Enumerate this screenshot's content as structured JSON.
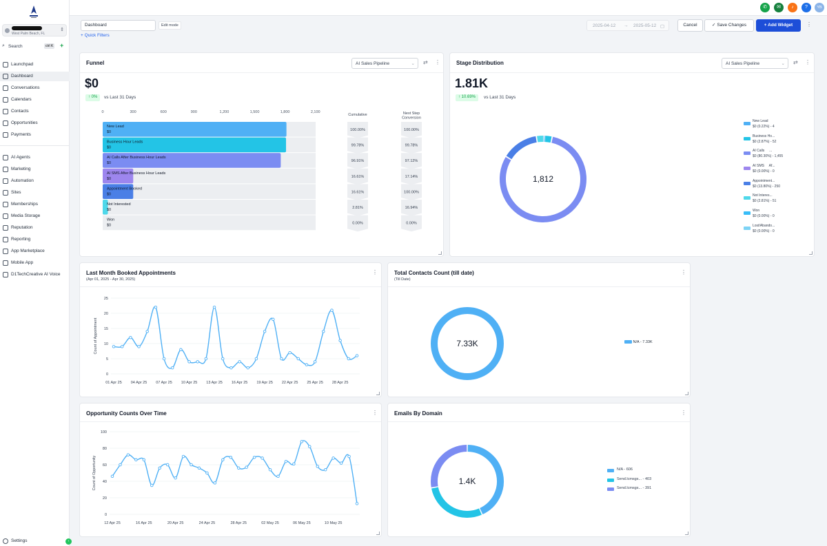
{
  "sidebar": {
    "account_location": "West Palm Beach, FL",
    "search_label": "Search",
    "search_shortcut": "ctrl K",
    "items": [
      {
        "label": "Launchpad"
      },
      {
        "label": "Dashboard"
      },
      {
        "label": "Conversations"
      },
      {
        "label": "Calendars"
      },
      {
        "label": "Contacts"
      },
      {
        "label": "Opportunities"
      },
      {
        "label": "Payments"
      },
      {
        "label": "AI Agents"
      },
      {
        "label": "Marketing"
      },
      {
        "label": "Automation"
      },
      {
        "label": "Sites"
      },
      {
        "label": "Memberships"
      },
      {
        "label": "Media Storage"
      },
      {
        "label": "Reputation"
      },
      {
        "label": "Reporting"
      },
      {
        "label": "App Marketplace"
      },
      {
        "label": "Mobile App"
      },
      {
        "label": "D1TechCreative AI Voice"
      }
    ],
    "settings_label": "Settings"
  },
  "topbar": {
    "help": "?",
    "avatar": "YB",
    "colors": {
      "phone": "#16a34a",
      "megaphone": "#15803d",
      "bell": "#f97316",
      "help": "#1d6fe8",
      "avatar": "#8bb4e8"
    }
  },
  "toolbar": {
    "dashboard_name": "Dashboard",
    "edit_mode": "Edit mode",
    "quick_filters": "+ Quick Filters",
    "date_start": "2025-04-12",
    "date_end": "2025-05-12",
    "cancel": "Cancel",
    "save": "Save Changes",
    "add_widget": "+ Add Widget"
  },
  "funnel": {
    "title": "Funnel",
    "pipeline": "AI Sales Pipeline",
    "value": "$0",
    "change": "↑ 0%",
    "vs": "vs Last 31 Days",
    "ticks": [
      "0",
      "300",
      "600",
      "900",
      "1,200",
      "1,500",
      "1,800",
      "2,100"
    ],
    "col_cumulative": "Cumulative",
    "col_next_1": "Next Step",
    "col_next_2": "Conversion",
    "stages": [
      {
        "name": "New Lead",
        "value": "$0",
        "count": 1812,
        "color": "#4fb0f5",
        "cumulative": "100.00%",
        "next": "100.00%"
      },
      {
        "name": "Business Hour Leads",
        "value": "$0",
        "count": 1808,
        "color": "#23c4e6",
        "cumulative": "99.78%",
        "next": "99.78%"
      },
      {
        "name": "AI Calls   After Business Hour Leads",
        "value": "$0",
        "count": 1756,
        "color": "#7b8cf2",
        "cumulative": "96.91%",
        "next": "97.12%"
      },
      {
        "name": "AI SMS   After Business Hour Leads",
        "value": "$0",
        "count": 301,
        "color": "#9d86ee",
        "cumulative": "16.61%",
        "next": "17.14%"
      },
      {
        "name": "Appointment Booked",
        "value": "$0",
        "count": 301,
        "color": "#4a7fe6",
        "cumulative": "16.61%",
        "next": "100.00%"
      },
      {
        "name": "Not Interested",
        "value": "$0",
        "count": 51,
        "color": "#4fd8ea",
        "cumulative": "2.81%",
        "next": "16.94%"
      },
      {
        "name": "Won",
        "value": "$0",
        "count": 0,
        "color": "#38bdf8",
        "cumulative": "0.00%",
        "next": "0.00%"
      }
    ]
  },
  "stage_distribution": {
    "title": "Stage Distribution",
    "pipeline": "AI Sales Pipeline",
    "value": "1.81K",
    "change": "↑ 10.69%",
    "vs": "vs Last 31 Days",
    "center": "1,812",
    "legend": [
      {
        "name": "New Lead",
        "detail": "$0 (0.22%) - 4",
        "value": 4,
        "color": "#4fb0f5"
      },
      {
        "name": "Business Ho...",
        "detail": "$0 (2.87%) - 52",
        "value": 52,
        "color": "#23c4e6"
      },
      {
        "name": "AI Calls     ...",
        "detail": "$0 (80.30%) - 1,455",
        "value": 1455,
        "color": "#7b8cf2"
      },
      {
        "name": "AI SMS     Af...",
        "detail": "$0 (0.00%) - 0",
        "value": 0,
        "color": "#9d86ee"
      },
      {
        "name": "Appointment...",
        "detail": "$0 (13.80%) - 250",
        "value": 250,
        "color": "#4a7fe6"
      },
      {
        "name": "Not Interes...",
        "detail": "$0 (2.81%) - 51",
        "value": 51,
        "color": "#4fd8ea"
      },
      {
        "name": "Won",
        "detail": "$0 (0.00%) - 0",
        "value": 0,
        "color": "#38bdf8"
      },
      {
        "name": "Lost/Abando...",
        "detail": "$0 (0.00%) - 0",
        "value": 0,
        "color": "#7dd3f5"
      }
    ]
  },
  "booked": {
    "title": "Last Month Booked Appointments",
    "subtitle": "(Apr 01, 2025 - Apr 30, 2025)"
  },
  "contacts": {
    "title": "Total Contacts Count (till date)",
    "subtitle": "(Till Date)",
    "center": "7.33K",
    "legend": "N/A - 7.33K",
    "color": "#4fb0f5"
  },
  "opportunity": {
    "title": "Opportunity Counts Over Time"
  },
  "emails": {
    "title": "Emails By Domain",
    "center": "1.4K",
    "legend": [
      {
        "label": "N/A - 606",
        "value": 606,
        "color": "#4fb0f5"
      },
      {
        "label": "Send.lcmsgs... - 403",
        "value": 403,
        "color": "#23c4e6"
      },
      {
        "label": "Send.lcmsgs... - 391",
        "value": 391,
        "color": "#7b8cf2"
      }
    ]
  },
  "chart_data": [
    {
      "type": "line",
      "title": "Last Month Booked Appointments",
      "subtitle": "(Apr 01, 2025 - Apr 30, 2025)",
      "ylabel": "Count of Appointment",
      "xlabel": "",
      "ylim": [
        0,
        25
      ],
      "yticks": [
        0,
        5,
        10,
        15,
        20,
        25
      ],
      "tick_labels": [
        "01 Apr 25",
        "04 Apr 25",
        "07 Apr 25",
        "10 Apr 25",
        "13 Apr 25",
        "16 Apr 25",
        "19 Apr 25",
        "22 Apr 25",
        "25 Apr 25",
        "28 Apr 25"
      ],
      "x": [
        "01 Apr 25",
        "02 Apr 25",
        "03 Apr 25",
        "04 Apr 25",
        "05 Apr 25",
        "06 Apr 25",
        "07 Apr 25",
        "08 Apr 25",
        "09 Apr 25",
        "10 Apr 25",
        "11 Apr 25",
        "12 Apr 25",
        "13 Apr 25",
        "14 Apr 25",
        "15 Apr 25",
        "16 Apr 25",
        "17 Apr 25",
        "18 Apr 25",
        "19 Apr 25",
        "20 Apr 25",
        "21 Apr 25",
        "22 Apr 25",
        "23 Apr 25",
        "24 Apr 25",
        "25 Apr 25",
        "26 Apr 25",
        "27 Apr 25",
        "28 Apr 25",
        "29 Apr 25",
        "30 Apr 25"
      ],
      "values": [
        9,
        9,
        12,
        9,
        14,
        22,
        5,
        2,
        8,
        4,
        4,
        5,
        22,
        5,
        2,
        4,
        2,
        5,
        14,
        18,
        5,
        7,
        5,
        3,
        4,
        14,
        21,
        11,
        5,
        6
      ],
      "color": "#4fb0f5",
      "grid": true
    },
    {
      "type": "line",
      "title": "Opportunity Counts Over Time",
      "ylabel": "Count of Opportunity",
      "xlabel": "",
      "ylim": [
        0,
        100
      ],
      "yticks": [
        0,
        20,
        40,
        60,
        80,
        100
      ],
      "tick_labels": [
        "12 Apr 25",
        "16 Apr 25",
        "20 Apr 25",
        "24 Apr 25",
        "28 Apr 25",
        "02 May 25",
        "06 May 25",
        "10 May 25"
      ],
      "x": [
        "12 Apr 25",
        "13 Apr 25",
        "14 Apr 25",
        "15 Apr 25",
        "16 Apr 25",
        "17 Apr 25",
        "18 Apr 25",
        "19 Apr 25",
        "20 Apr 25",
        "21 Apr 25",
        "22 Apr 25",
        "23 Apr 25",
        "24 Apr 25",
        "25 Apr 25",
        "26 Apr 25",
        "27 Apr 25",
        "28 Apr 25",
        "29 Apr 25",
        "30 Apr 25",
        "01 May 25",
        "02 May 25",
        "03 May 25",
        "04 May 25",
        "05 May 25",
        "06 May 25",
        "07 May 25",
        "08 May 25",
        "09 May 25",
        "10 May 25",
        "11 May 25",
        "12 May 25",
        "13 May 25"
      ],
      "values": [
        46,
        60,
        72,
        66,
        66,
        35,
        56,
        60,
        44,
        70,
        60,
        56,
        50,
        38,
        66,
        69,
        56,
        57,
        69,
        68,
        54,
        46,
        64,
        61,
        88,
        82,
        58,
        54,
        68,
        62,
        70,
        13
      ],
      "color": "#4fb0f5",
      "grid": true
    },
    {
      "type": "pie",
      "title": "Stage Distribution",
      "categories": [
        "New Lead",
        "Business Ho...",
        "AI Calls",
        "AI SMS Af...",
        "Appointment...",
        "Not Interes...",
        "Won",
        "Lost/Abando..."
      ],
      "values": [
        4,
        52,
        1455,
        0,
        250,
        51,
        0,
        0
      ]
    },
    {
      "type": "pie",
      "title": "Total Contacts Count (till date)",
      "categories": [
        "N/A"
      ],
      "values": [
        7330
      ]
    },
    {
      "type": "pie",
      "title": "Emails By Domain",
      "categories": [
        "N/A",
        "Send.lcmsgs...",
        "Send.lcmsgs..."
      ],
      "values": [
        606,
        403,
        391
      ]
    }
  ]
}
